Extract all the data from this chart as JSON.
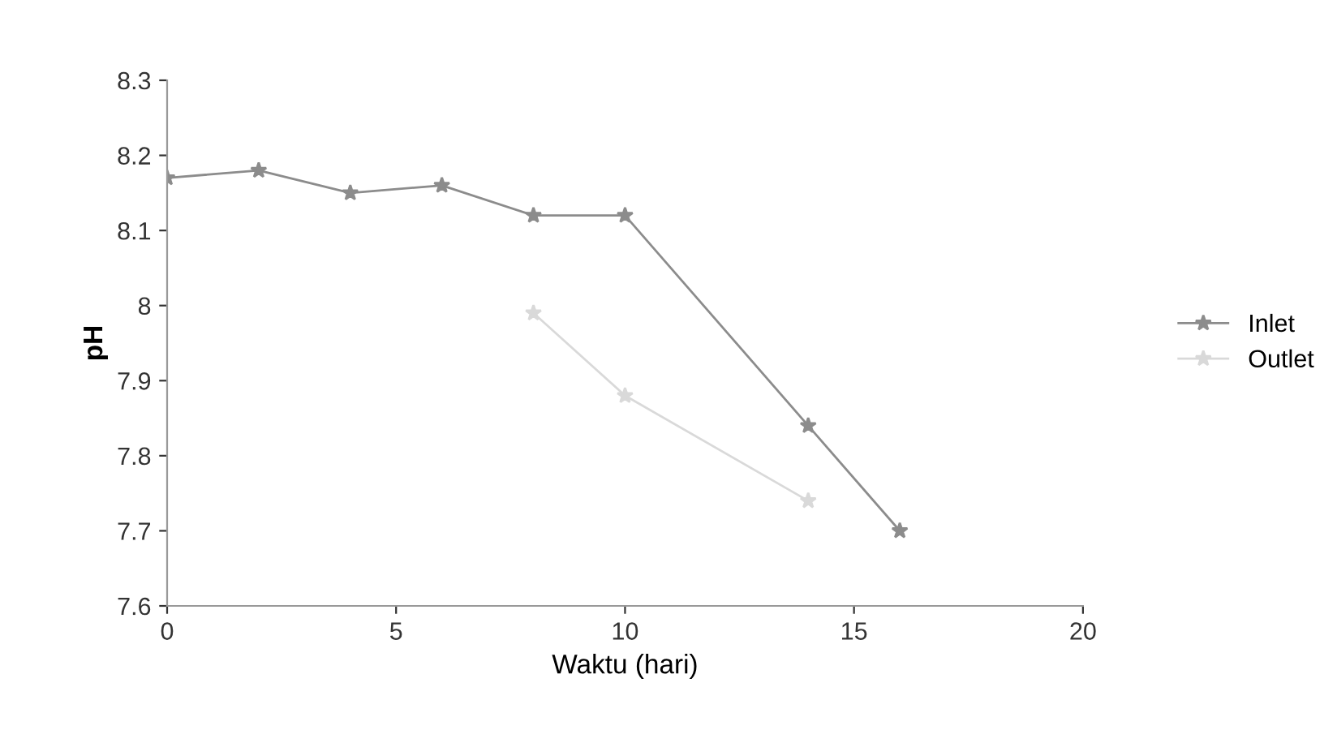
{
  "chart_data": {
    "type": "line",
    "xlabel": "Waktu (hari)",
    "ylabel": "pH",
    "x": [
      0,
      2,
      4,
      6,
      8,
      10,
      14,
      16
    ],
    "series": [
      {
        "name": "Inlet",
        "color": "#8c8c8c",
        "values": [
          8.17,
          8.18,
          8.15,
          8.16,
          8.12,
          8.12,
          7.84,
          7.7
        ]
      },
      {
        "name": "Outlet",
        "color": "#d9d9d9",
        "values": [
          null,
          null,
          null,
          null,
          7.99,
          7.88,
          7.74,
          null
        ]
      }
    ],
    "xlim": [
      0,
      20
    ],
    "xticks": [
      0,
      5,
      10,
      15,
      20
    ],
    "ylim": [
      7.6,
      8.3
    ],
    "yticks": [
      7.6,
      7.7,
      7.8,
      7.9,
      8,
      8.1,
      8.2,
      8.3
    ],
    "grid": false,
    "legend": "right",
    "marker": "star",
    "line_style": "solid"
  }
}
